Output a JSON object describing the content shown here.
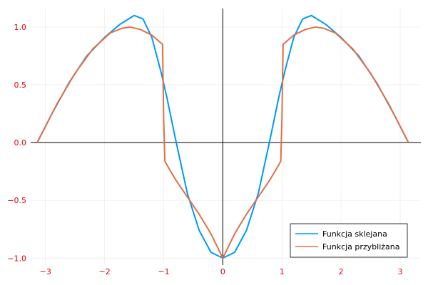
{
  "chart_data": {
    "type": "line",
    "title": "",
    "xlabel": "",
    "ylabel": "",
    "xlim": [
      -3.25,
      3.35
    ],
    "ylim": [
      -1.06,
      1.16
    ],
    "xticks": [
      -3,
      -2,
      -1,
      0,
      1,
      2,
      3
    ],
    "xtick_labels": [
      "−3",
      "−2",
      "−1",
      "0",
      "1",
      "2",
      "3"
    ],
    "yticks": [
      -1.0,
      -0.5,
      0.0,
      0.5,
      1.0
    ],
    "ytick_labels": [
      "−1.0",
      "−0.5",
      "0.0",
      "0.5",
      "1.0"
    ],
    "tick_label_color": "#e8000b",
    "axis_color": "#000000",
    "grid": true,
    "legend_position": "bottom-right",
    "series": [
      {
        "name": "Funkcja sklejana",
        "color": "#009af9",
        "x": [
          -3.14,
          -2.9,
          -2.6,
          -2.3,
          -2.0,
          -1.75,
          -1.5,
          -1.35,
          -1.2,
          -1.05,
          -0.95,
          -0.8,
          -0.6,
          -0.4,
          -0.2,
          0.0,
          0.2,
          0.4,
          0.6,
          0.8,
          0.95,
          1.05,
          1.2,
          1.35,
          1.5,
          1.75,
          2.0,
          2.3,
          2.6,
          2.9,
          3.14
        ],
        "y": [
          0.0,
          0.24,
          0.52,
          0.75,
          0.91,
          1.02,
          1.1,
          1.07,
          0.91,
          0.62,
          0.4,
          0.03,
          -0.44,
          -0.76,
          -0.95,
          -1.0,
          -0.95,
          -0.76,
          -0.44,
          0.03,
          0.4,
          0.62,
          0.91,
          1.07,
          1.1,
          1.02,
          0.91,
          0.75,
          0.52,
          0.24,
          0.0
        ]
      },
      {
        "name": "Funkcja przybliżana",
        "color": "#e26f46",
        "x": [
          -3.14,
          -2.8,
          -2.5,
          -2.2,
          -1.9,
          -1.7,
          -1.57,
          -1.4,
          -1.2,
          -1.02,
          -1.0,
          -0.98,
          -0.95,
          -0.8,
          -0.6,
          -0.4,
          -0.2,
          0.0,
          0.2,
          0.4,
          0.6,
          0.8,
          0.95,
          0.98,
          1.0,
          1.02,
          1.2,
          1.4,
          1.57,
          1.7,
          1.9,
          2.2,
          2.5,
          2.8,
          3.14
        ],
        "y": [
          0.0,
          0.34,
          0.6,
          0.81,
          0.95,
          0.99,
          1.0,
          0.98,
          0.93,
          0.85,
          0.2,
          -0.16,
          -0.19,
          -0.32,
          -0.47,
          -0.62,
          -0.79,
          -1.0,
          -0.79,
          -0.62,
          -0.47,
          -0.32,
          -0.19,
          -0.16,
          0.2,
          0.85,
          0.93,
          0.98,
          1.0,
          0.99,
          0.95,
          0.81,
          0.6,
          0.34,
          0.0
        ]
      }
    ]
  }
}
